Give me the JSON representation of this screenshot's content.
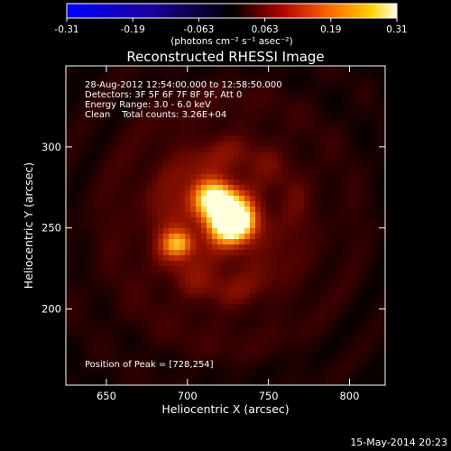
{
  "chart_data": {
    "type": "heatmap",
    "title": "Reconstructed RHESSI Image",
    "xlabel": "Heliocentric X (arcsec)",
    "ylabel": "Heliocentric Y (arcsec)",
    "xlim": [
      625,
      822
    ],
    "ylim": [
      153,
      350
    ],
    "x_ticks": [
      650,
      700,
      750,
      800
    ],
    "y_ticks": [
      200,
      250,
      300
    ],
    "colorbar": {
      "ticks": [
        "-0.31",
        "-0.19",
        "-0.063",
        "0.063",
        "0.19",
        "0.31"
      ],
      "units": "(photons cm⁻² s⁻¹ asec⁻²)",
      "min": -0.31,
      "max": 0.31
    },
    "annotations": [
      "28-Aug-2012 12:54:00.000 to 12:58:50.000",
      "Detectors: 3F 5F 6F 7F 8F 9F, Att 0",
      "Energy Range: 3.0 - 6.0 keV",
      "Clean    Total counts: 3.26E+04"
    ],
    "peak_label": "Position of Peak = [728,254]",
    "sources": [
      {
        "x": 717,
        "y": 268,
        "flux": 0.26
      },
      {
        "x": 728,
        "y": 254,
        "flux": 0.31
      },
      {
        "x": 695,
        "y": 240,
        "flux": 0.16
      }
    ],
    "timestamp": "15-May-2014 20:23",
    "colors": {
      "background": "#000000",
      "axis": "#ffffff"
    }
  }
}
